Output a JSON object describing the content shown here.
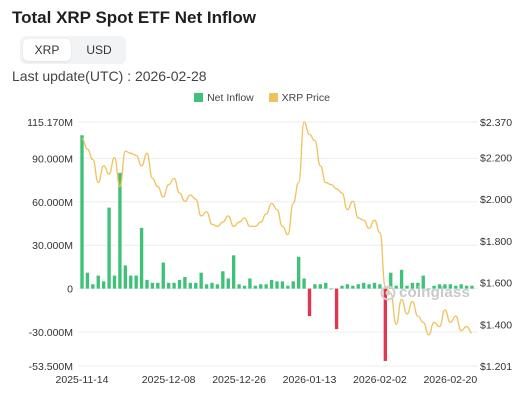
{
  "header": {
    "title": "Total XRP Spot ETF Net Inflow",
    "last_update": "Last update(UTC) : 2026-02-28"
  },
  "toggle": {
    "options": [
      "XRP",
      "USD"
    ],
    "selected": "XRP"
  },
  "legend": {
    "inflow_label": "Net Inflow",
    "price_label": "XRP Price"
  },
  "watermark": "coinglass",
  "colors": {
    "positive": "#3fc278",
    "negative": "#e0364f",
    "price_line": "#efc25b",
    "grid": "#eeeeee"
  },
  "chart_data": {
    "type": "bar",
    "left_axis": {
      "ticks": [
        115170000,
        90000000,
        60000000,
        30000000,
        0,
        -30000000,
        -53500000
      ],
      "tick_labels": [
        "115.170M",
        "90.000M",
        "60.000M",
        "30.000M",
        "0",
        "-30.000M",
        "-53.500M"
      ],
      "ylim": [
        -53500000,
        115170000
      ]
    },
    "right_axis": {
      "ticks": [
        2.37,
        2.2,
        2.0,
        1.8,
        1.6,
        1.4,
        1.201
      ],
      "tick_labels": [
        "$2.370",
        "$2.200",
        "$2.000",
        "$1.800",
        "$1.600",
        "$1.400",
        "$1.201"
      ],
      "ylim": [
        1.201,
        2.37
      ]
    },
    "x_tick_labels": [
      "2025-11-14",
      "2025-12-08",
      "2025-12-26",
      "2026-01-13",
      "2026-02-02",
      "2026-02-20"
    ],
    "x_tick_index": [
      0,
      16,
      29,
      42,
      55,
      68
    ],
    "series": [
      {
        "name": "Net Inflow",
        "values": [
          106000000,
          11000000,
          3000000,
          9000000,
          5000000,
          56000000,
          9000000,
          80000000,
          16000000,
          9000000,
          9000000,
          42000000,
          6000000,
          4000000,
          4000000,
          18000000,
          4000000,
          4000000,
          6000000,
          8000000,
          4000000,
          4000000,
          11000000,
          3000000,
          4000000,
          3000000,
          12000000,
          7000000,
          23000000,
          3000000,
          2000000,
          7000000,
          2000000,
          3000000,
          3000000,
          6000000,
          5000000,
          5000000,
          2000000,
          5000000,
          22000000,
          7000000,
          -19000000,
          3000000,
          3000000,
          4000000,
          0,
          -28000000,
          2000000,
          3000000,
          2000000,
          3000000,
          4000000,
          3000000,
          4000000,
          3000000,
          -50000000,
          11000000,
          2000000,
          13000000,
          2000000,
          4000000,
          4000000,
          9000000,
          0,
          2000000,
          3000000,
          3000000,
          3000000,
          2000000,
          3000000,
          2000000,
          2000000
        ]
      },
      {
        "name": "XRP Price",
        "values": [
          2.29,
          2.24,
          2.19,
          2.08,
          2.16,
          2.12,
          2.2,
          2.06,
          2.23,
          2.22,
          2.21,
          2.16,
          2.22,
          2.1,
          2.06,
          2.01,
          2.07,
          2.1,
          2.03,
          1.99,
          2.02,
          2.0,
          1.92,
          1.94,
          1.88,
          1.87,
          1.89,
          1.92,
          1.87,
          1.89,
          1.91,
          1.87,
          1.87,
          1.89,
          1.93,
          1.98,
          1.95,
          1.87,
          1.83,
          1.98,
          2.08,
          2.37,
          2.31,
          2.28,
          2.16,
          2.08,
          2.07,
          2.05,
          2.03,
          1.95,
          1.99,
          1.91,
          1.9,
          1.86,
          1.9,
          1.84,
          1.58,
          1.55,
          1.4,
          1.52,
          1.45,
          1.51,
          1.44,
          1.41,
          1.35,
          1.41,
          1.39,
          1.47,
          1.41,
          1.44,
          1.37,
          1.39,
          1.36
        ]
      }
    ]
  }
}
